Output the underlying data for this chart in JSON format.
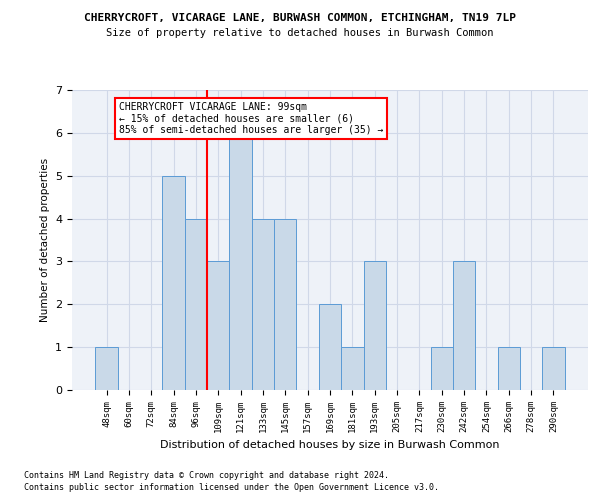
{
  "title_line1": "CHERRYCROFT, VICARAGE LANE, BURWASH COMMON, ETCHINGHAM, TN19 7LP",
  "title_line2": "Size of property relative to detached houses in Burwash Common",
  "xlabel": "Distribution of detached houses by size in Burwash Common",
  "ylabel": "Number of detached properties",
  "footnote1": "Contains HM Land Registry data © Crown copyright and database right 2024.",
  "footnote2": "Contains public sector information licensed under the Open Government Licence v3.0.",
  "bar_labels": [
    "48sqm",
    "60sqm",
    "72sqm",
    "84sqm",
    "96sqm",
    "109sqm",
    "121sqm",
    "133sqm",
    "145sqm",
    "157sqm",
    "169sqm",
    "181sqm",
    "193sqm",
    "205sqm",
    "217sqm",
    "230sqm",
    "242sqm",
    "254sqm",
    "266sqm",
    "278sqm",
    "290sqm"
  ],
  "bar_values": [
    1,
    0,
    0,
    5,
    4,
    3,
    6,
    4,
    4,
    0,
    2,
    1,
    3,
    0,
    0,
    1,
    3,
    0,
    1,
    0,
    1
  ],
  "bar_color": "#c9d9e8",
  "bar_edge_color": "#5b9bd5",
  "grid_color": "#d0d8e8",
  "vline_x": 4.5,
  "vline_color": "red",
  "annotation_text": "CHERRYCROFT VICARAGE LANE: 99sqm\n← 15% of detached houses are smaller (6)\n85% of semi-detached houses are larger (35) →",
  "annotation_box_color": "white",
  "annotation_box_edge": "red",
  "ylim": [
    0,
    7
  ],
  "yticks": [
    0,
    1,
    2,
    3,
    4,
    5,
    6,
    7
  ],
  "background_color": "white",
  "bg_axes_color": "#eef2f8"
}
